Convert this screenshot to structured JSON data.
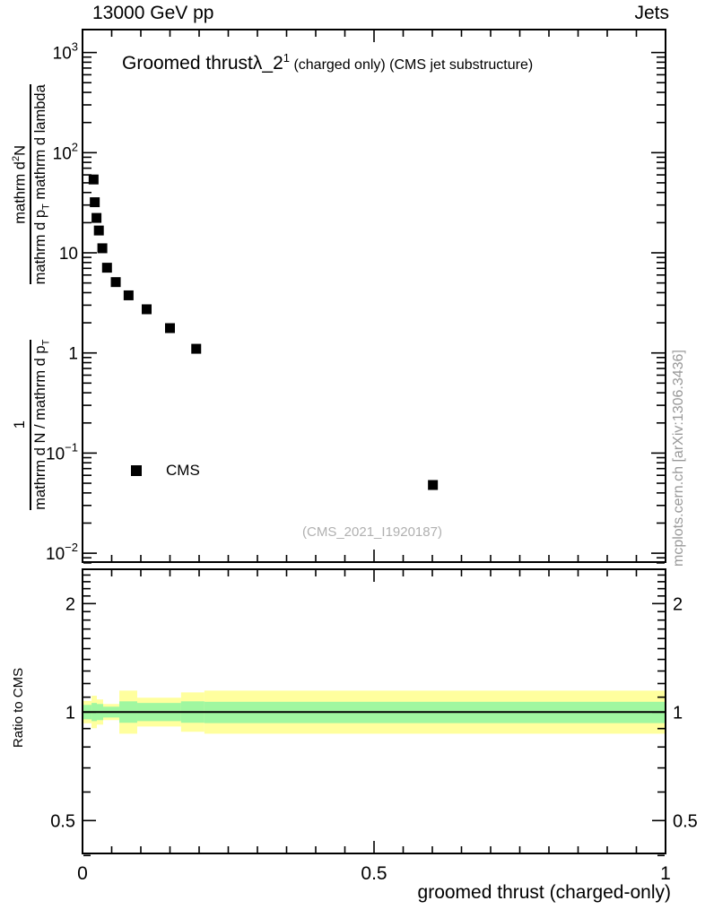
{
  "header": {
    "left": "13000 GeV pp",
    "right": "Jets"
  },
  "title": {
    "pre": "Groomed thrust",
    "lambda": "λ_2",
    "sup": "1",
    "small": " (charged only) (CMS jet substructure)"
  },
  "watermark": "(CMS_2021_I1920187)",
  "side_note": "mcplots.cern.ch [arXiv:1306.3436]",
  "legend": {
    "label": "CMS",
    "marker": "filled-black-square"
  },
  "y_main_label": {
    "frac1": {
      "num": "1",
      "den_pre": "mathrm d N / mathrm d p",
      "den_sub": "T"
    },
    "frac2": {
      "num_pre": "mathrm d",
      "num_sup": "2",
      "num_post": "N",
      "den_pre": "mathrm d p",
      "den_sub": "T",
      "den_post": " mathrm d lambda"
    }
  },
  "axes": {
    "x": {
      "title": "groomed thrust (charged-only)",
      "range": [
        0,
        1
      ],
      "minor_step": 0.05,
      "major_ticks": [
        {
          "v": 0,
          "label": "0"
        },
        {
          "v": 0.5,
          "label": "0.5"
        },
        {
          "v": 1,
          "label": "1"
        }
      ]
    },
    "y_main": {
      "scale": "log",
      "range": [
        0.0078,
        1700
      ],
      "major_ticks": [
        {
          "v": 1000,
          "base": "10",
          "exp": "3"
        },
        {
          "v": 100,
          "base": "10",
          "exp": "2"
        },
        {
          "v": 10,
          "base": "10",
          "exp": ""
        },
        {
          "v": 1,
          "base": "1",
          "exp": ""
        },
        {
          "v": 0.1,
          "base": "10",
          "exp": "−1"
        },
        {
          "v": 0.01,
          "base": "10",
          "exp": "−2"
        }
      ]
    },
    "y_ratio": {
      "title": "Ratio to CMS",
      "scale": "log",
      "range": [
        0.405,
        2.49
      ],
      "major_ticks": [
        {
          "v": 2,
          "label": "2"
        },
        {
          "v": 1,
          "label": "1"
        },
        {
          "v": 0.5,
          "label": "0.5"
        }
      ],
      "minor_ticks": [
        0.4,
        0.6,
        0.7,
        0.8,
        0.9,
        1.1,
        1.2,
        1.3,
        1.4,
        1.5,
        1.6,
        1.7,
        1.8,
        1.9,
        2.1,
        2.2,
        2.3,
        2.4
      ]
    }
  },
  "chart_data": [
    {
      "type": "scatter",
      "name": "CMS data points",
      "marker": "filled-square",
      "title": "Groomed thrust λ_2^1 (charged only) (CMS jet substructure)",
      "xlabel": "groomed thrust (charged-only)",
      "ylabel": "1/(mathrm d N / mathrm d p_T) · mathrm d^2 N / (mathrm d p_T mathrm d lambda)",
      "xlim": [
        0,
        1
      ],
      "ylim": [
        0.0078,
        1700
      ],
      "yscale": "log",
      "x": [
        0.019,
        0.021,
        0.024,
        0.028,
        0.034,
        0.042,
        0.057,
        0.079,
        0.11,
        0.15,
        0.195,
        0.601
      ],
      "y": [
        54,
        32,
        22.3,
        16.7,
        11.1,
        7.1,
        5.1,
        3.76,
        2.73,
        1.77,
        1.1,
        0.048
      ]
    },
    {
      "type": "ratio-bands",
      "name": "Ratio to CMS uncertainty bands",
      "yscale": "log",
      "ylim": [
        0.405,
        2.49
      ],
      "baseline": 1,
      "colors": {
        "outer_band": "#ffff9e",
        "inner_band": "#a0f7a0",
        "baseline_line": "#000000"
      },
      "segments": [
        {
          "x0": 0.0,
          "x1": 0.0155,
          "outer": [
            0.931,
            1.074
          ],
          "inner": [
            0.955,
            1.047
          ]
        },
        {
          "x0": 0.0155,
          "x1": 0.0246,
          "outer": [
            0.902,
            1.11
          ],
          "inner": [
            0.944,
            1.06
          ]
        },
        {
          "x0": 0.0246,
          "x1": 0.0354,
          "outer": [
            0.923,
            1.084
          ],
          "inner": [
            0.95,
            1.053
          ]
        },
        {
          "x0": 0.0354,
          "x1": 0.0631,
          "outer": [
            0.95,
            1.053
          ],
          "inner": [
            0.966,
            1.035
          ]
        },
        {
          "x0": 0.0631,
          "x1": 0.0938,
          "outer": [
            0.871,
            1.147
          ],
          "inner": [
            0.934,
            1.071
          ]
        },
        {
          "x0": 0.0938,
          "x1": 0.169,
          "outer": [
            0.912,
            1.096
          ],
          "inner": [
            0.944,
            1.06
          ]
        },
        {
          "x0": 0.169,
          "x1": 0.209,
          "outer": [
            0.882,
            1.134
          ],
          "inner": [
            0.934,
            1.071
          ]
        },
        {
          "x0": 0.209,
          "x1": 1.0,
          "outer": [
            0.871,
            1.147
          ],
          "inner": [
            0.932,
            1.068
          ]
        }
      ]
    }
  ]
}
